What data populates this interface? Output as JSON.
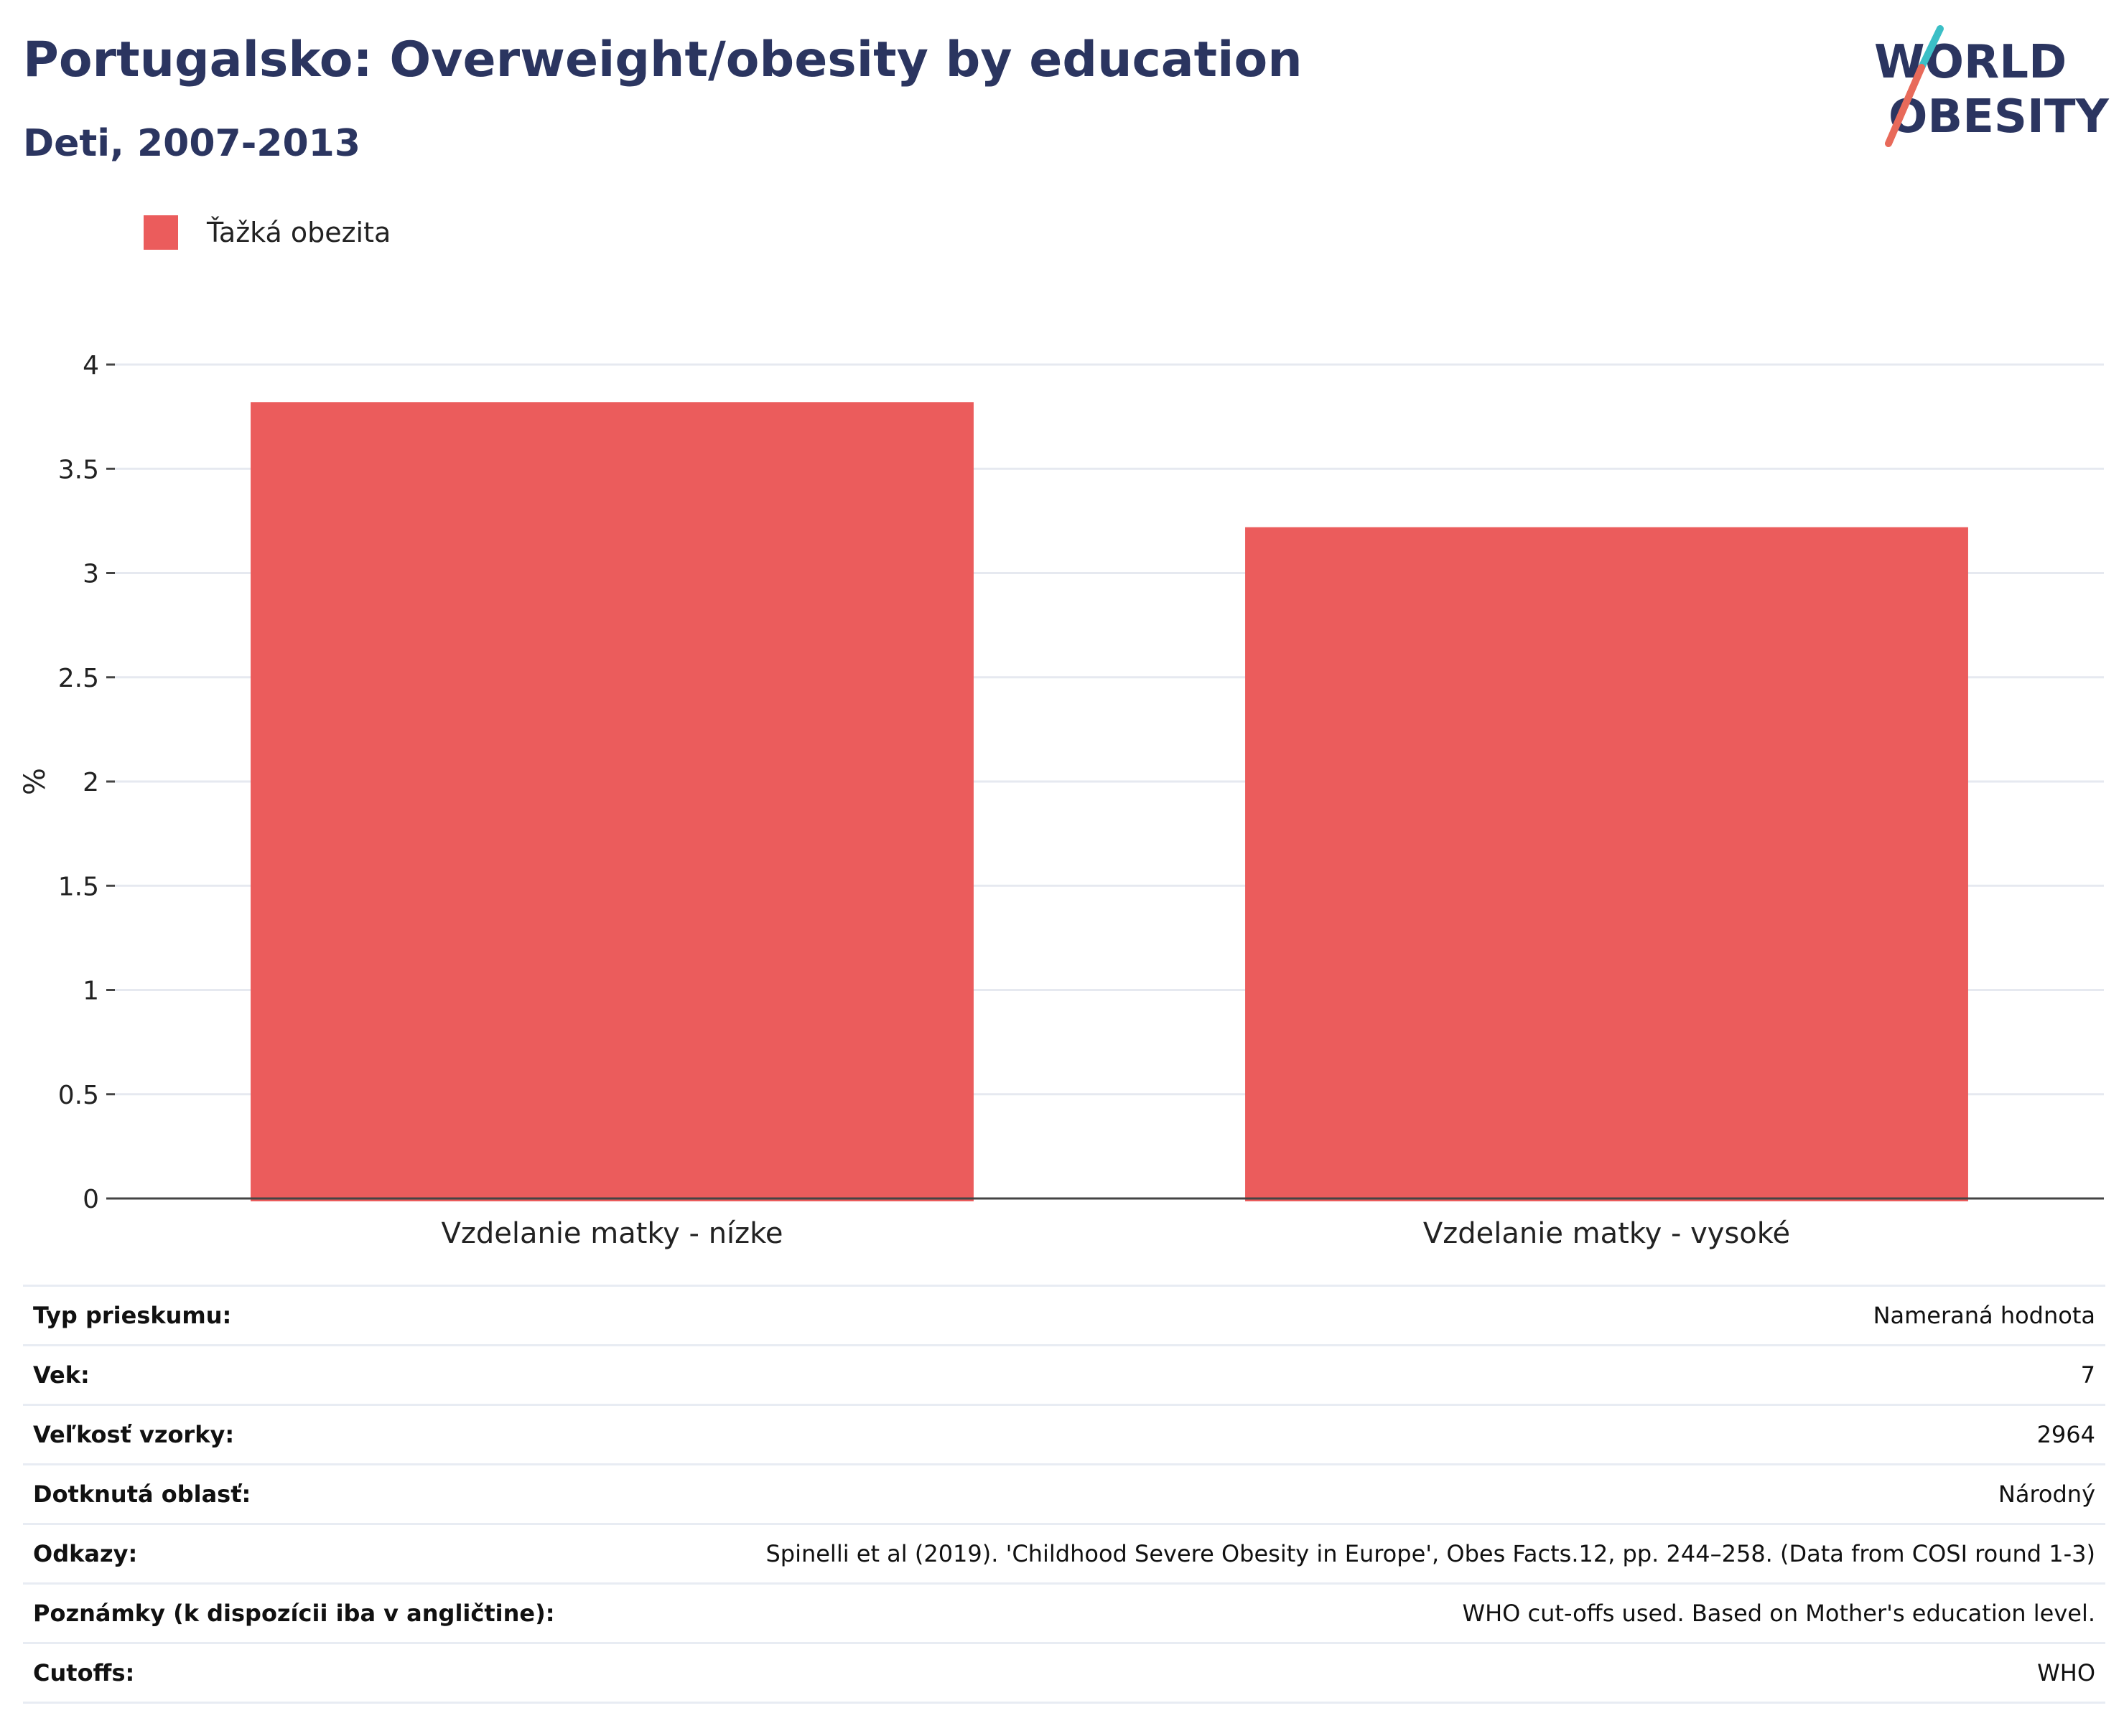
{
  "header": {
    "title": "Portugalsko: Overweight/obesity by education",
    "subtitle": "Deti, 2007-2013"
  },
  "logo": {
    "line1": "WORLD",
    "line2": "OBESITY",
    "colors": {
      "text": "#2b3560",
      "slash_top": "#3bbfc6",
      "slash_bottom": "#e86a5a"
    }
  },
  "colors": {
    "bar": "#eb5c5c",
    "axis": "#444444",
    "grid": "#e6e9f0"
  },
  "chart_data": {
    "type": "bar",
    "categories": [
      "Vzdelanie matky - nízke",
      "Vzdelanie matky - vysoké"
    ],
    "series": [
      {
        "name": "Ťažká obezita",
        "values": [
          3.82,
          3.22
        ]
      }
    ],
    "xlabel": "",
    "ylabel": "%",
    "ylim": [
      0,
      4
    ],
    "yticks": [
      0,
      0.5,
      1,
      1.5,
      2,
      2.5,
      3,
      3.5,
      4
    ],
    "ytick_labels": [
      "0",
      "0.5",
      "1",
      "1.5",
      "2",
      "2.5",
      "3",
      "3.5",
      "4"
    ],
    "grid": true,
    "legend_position": "top-left"
  },
  "info": [
    {
      "label": "Typ prieskumu:",
      "value": "Nameraná hodnota"
    },
    {
      "label": "Vek:",
      "value": "7"
    },
    {
      "label": "Veľkosť vzorky:",
      "value": "2964"
    },
    {
      "label": "Dotknutá oblasť:",
      "value": "Národný"
    },
    {
      "label": "Odkazy:",
      "value": "Spinelli et al (2019). 'Childhood Severe Obesity in Europe', Obes Facts.12, pp. 244–258. (Data from COSI round 1-3)"
    },
    {
      "label": "Poznámky (k dispozícii iba v angličtine):",
      "value": "WHO cut-offs used. Based on Mother's education level."
    },
    {
      "label": "Cutoffs:",
      "value": "WHO"
    }
  ]
}
